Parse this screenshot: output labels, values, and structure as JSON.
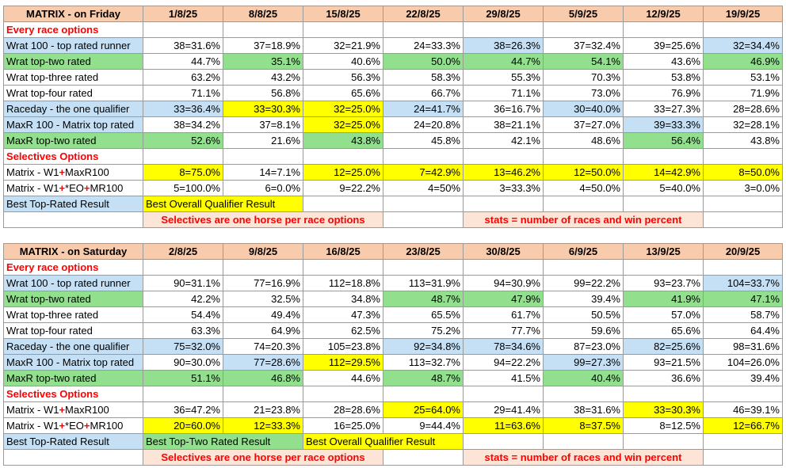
{
  "colors": {
    "blue": "#c5e0f4",
    "green": "#92e08e",
    "yellow": "#ffff00",
    "header": "#f8cbad",
    "note_bg": "#fce4d6",
    "red_text": "#ff0000"
  },
  "friday": {
    "title": "MATRIX - on Friday",
    "dates": [
      "1/8/25",
      "8/8/25",
      "15/8/25",
      "22/8/25",
      "29/8/25",
      "5/9/25",
      "12/9/25",
      "19/9/25"
    ],
    "section1": "Every race options",
    "section2": "Selectives Options",
    "rows": [
      {
        "label": "Wrat 100 - top rated runner",
        "label_bg": "blue",
        "cells": [
          {
            "v": "38=31.6%"
          },
          {
            "v": "37=18.9%"
          },
          {
            "v": "32=21.9%"
          },
          {
            "v": "24=33.3%"
          },
          {
            "v": "38=26.3%",
            "bg": "blue"
          },
          {
            "v": "37=32.4%"
          },
          {
            "v": "39=25.6%"
          },
          {
            "v": "32=34.4%",
            "bg": "blue"
          }
        ]
      },
      {
        "label": "Wrat top-two rated",
        "label_bg": "green",
        "cells": [
          {
            "v": "44.7%"
          },
          {
            "v": "35.1%",
            "bg": "green"
          },
          {
            "v": "40.6%"
          },
          {
            "v": "50.0%",
            "bg": "green"
          },
          {
            "v": "44.7%",
            "bg": "green"
          },
          {
            "v": "54.1%",
            "bg": "green"
          },
          {
            "v": "43.6%"
          },
          {
            "v": "46.9%",
            "bg": "green"
          }
        ]
      },
      {
        "label": "Wrat top-three rated",
        "cells": [
          {
            "v": "63.2%"
          },
          {
            "v": "43.2%"
          },
          {
            "v": "56.3%"
          },
          {
            "v": "58.3%"
          },
          {
            "v": "55.3%"
          },
          {
            "v": "70.3%"
          },
          {
            "v": "53.8%"
          },
          {
            "v": "53.1%"
          }
        ]
      },
      {
        "label": "Wrat top-four rated",
        "cells": [
          {
            "v": "71.1%"
          },
          {
            "v": "56.8%"
          },
          {
            "v": "65.6%"
          },
          {
            "v": "66.7%"
          },
          {
            "v": "71.1%"
          },
          {
            "v": "73.0%"
          },
          {
            "v": "76.9%"
          },
          {
            "v": "71.9%"
          }
        ]
      },
      {
        "label": "Raceday - the one qualifier",
        "label_bg": "blue",
        "cells": [
          {
            "v": "33=36.4%",
            "bg": "blue"
          },
          {
            "v": "33=30.3%",
            "bg": "yellow"
          },
          {
            "v": "32=25.0%",
            "bg": "yellow"
          },
          {
            "v": "24=41.7%",
            "bg": "blue"
          },
          {
            "v": "36=16.7%"
          },
          {
            "v": "30=40.0%",
            "bg": "blue"
          },
          {
            "v": "33=27.3%"
          },
          {
            "v": "28=28.6%"
          }
        ]
      },
      {
        "label": "MaxR 100 - Matrix top rated",
        "label_bg": "blue",
        "cells": [
          {
            "v": "38=34.2%"
          },
          {
            "v": "37=8.1%"
          },
          {
            "v": "32=25.0%",
            "bg": "yellow"
          },
          {
            "v": "24=20.8%"
          },
          {
            "v": "38=21.1%"
          },
          {
            "v": "37=27.0%"
          },
          {
            "v": "39=33.3%",
            "bg": "blue"
          },
          {
            "v": "32=28.1%"
          }
        ]
      },
      {
        "label": "MaxR top-two rated",
        "label_bg": "green",
        "cells": [
          {
            "v": "52.6%",
            "bg": "green"
          },
          {
            "v": "21.6%"
          },
          {
            "v": "43.8%",
            "bg": "green"
          },
          {
            "v": "45.8%"
          },
          {
            "v": "42.1%"
          },
          {
            "v": "48.6%"
          },
          {
            "v": "56.4%",
            "bg": "green"
          },
          {
            "v": "43.8%"
          }
        ]
      }
    ],
    "sel_rows": [
      {
        "label_a": "Matrix - W1",
        "label_b": "+",
        "label_c": "MaxR100",
        "cells": [
          {
            "v": "8=75.0%",
            "bg": "yellow"
          },
          {
            "v": "14=7.1%"
          },
          {
            "v": "12=25.0%",
            "bg": "yellow"
          },
          {
            "v": "7=42.9%",
            "bg": "yellow"
          },
          {
            "v": "13=46.2%",
            "bg": "yellow"
          },
          {
            "v": "12=50.0%",
            "bg": "yellow"
          },
          {
            "v": "14=42.9%",
            "bg": "yellow"
          },
          {
            "v": "8=50.0%",
            "bg": "yellow"
          }
        ]
      },
      {
        "label_a": "Matrix - W1",
        "label_b": "+",
        "label_c": "*EO",
        "label_d": "+",
        "label_e": "MR100",
        "cells": [
          {
            "v": "5=100.0%"
          },
          {
            "v": "6=0.0%"
          },
          {
            "v": "9=22.2%"
          },
          {
            "v": "4=50%"
          },
          {
            "v": "3=33.3%"
          },
          {
            "v": "4=50.0%"
          },
          {
            "v": "5=40.0%"
          },
          {
            "v": "3=0.0%"
          }
        ]
      }
    ],
    "legend_top_rated": "Best Top-Rated Result",
    "legend_overall": "Best Overall Qualifier Result",
    "note_left": "Selectives are one horse per race options",
    "note_right": "stats = number of races and win percent"
  },
  "saturday": {
    "title": "MATRIX - on Saturday",
    "dates": [
      "2/8/25",
      "9/8/25",
      "16/8/25",
      "23/8/25",
      "30/8/25",
      "6/9/25",
      "13/9/25",
      "20/9/25"
    ],
    "section1": "Every race options",
    "section2": "Selectives Options",
    "rows": [
      {
        "label": "Wrat 100 - top rated runner",
        "label_bg": "blue",
        "cells": [
          {
            "v": "90=31.1%"
          },
          {
            "v": "77=16.9%"
          },
          {
            "v": "112=18.8%"
          },
          {
            "v": "113=31.9%"
          },
          {
            "v": "94=30.9%"
          },
          {
            "v": "99=22.2%"
          },
          {
            "v": "93=23.7%"
          },
          {
            "v": "104=33.7%",
            "bg": "blue"
          }
        ]
      },
      {
        "label": "Wrat top-two rated",
        "label_bg": "green",
        "cells": [
          {
            "v": "42.2%"
          },
          {
            "v": "32.5%"
          },
          {
            "v": "34.8%"
          },
          {
            "v": "48.7%",
            "bg": "green"
          },
          {
            "v": "47.9%",
            "bg": "green"
          },
          {
            "v": "39.4%"
          },
          {
            "v": "41.9%",
            "bg": "green"
          },
          {
            "v": "47.1%",
            "bg": "green"
          }
        ]
      },
      {
        "label": "Wrat top-three rated",
        "cells": [
          {
            "v": "54.4%"
          },
          {
            "v": "49.4%"
          },
          {
            "v": "47.3%"
          },
          {
            "v": "65.5%"
          },
          {
            "v": "61.7%"
          },
          {
            "v": "50.5%"
          },
          {
            "v": "57.0%"
          },
          {
            "v": "58.7%"
          }
        ]
      },
      {
        "label": "Wrat top-four rated",
        "cells": [
          {
            "v": "63.3%"
          },
          {
            "v": "64.9%"
          },
          {
            "v": "62.5%"
          },
          {
            "v": "75.2%"
          },
          {
            "v": "77.7%"
          },
          {
            "v": "59.6%"
          },
          {
            "v": "65.6%"
          },
          {
            "v": "64.4%"
          }
        ]
      },
      {
        "label": "Raceday - the one qualifier",
        "label_bg": "blue",
        "cells": [
          {
            "v": "75=32.0%",
            "bg": "blue"
          },
          {
            "v": "74=20.3%"
          },
          {
            "v": "105=23.8%"
          },
          {
            "v": "92=34.8%",
            "bg": "blue"
          },
          {
            "v": "78=34.6%",
            "bg": "blue"
          },
          {
            "v": "87=23.0%"
          },
          {
            "v": "82=25.6%",
            "bg": "blue"
          },
          {
            "v": "98=31.6%"
          }
        ]
      },
      {
        "label": "MaxR 100 - Matrix top rated",
        "label_bg": "blue",
        "cells": [
          {
            "v": "90=30.0%"
          },
          {
            "v": "77=28.6%",
            "bg": "blue"
          },
          {
            "v": "112=29.5%",
            "bg": "yellow"
          },
          {
            "v": "113=32.7%"
          },
          {
            "v": "94=22.2%"
          },
          {
            "v": "99=27.3%",
            "bg": "blue"
          },
          {
            "v": "93=21.5%"
          },
          {
            "v": "104=26.0%"
          }
        ]
      },
      {
        "label": "MaxR top-two rated",
        "label_bg": "green",
        "cells": [
          {
            "v": "51.1%",
            "bg": "green"
          },
          {
            "v": "46.8%",
            "bg": "green"
          },
          {
            "v": "44.6%"
          },
          {
            "v": "48.7%",
            "bg": "green"
          },
          {
            "v": "41.5%"
          },
          {
            "v": "40.4%",
            "bg": "green"
          },
          {
            "v": "36.6%"
          },
          {
            "v": "39.4%"
          }
        ]
      }
    ],
    "sel_rows": [
      {
        "label_a": "Matrix - W1",
        "label_b": "+",
        "label_c": "MaxR100",
        "cells": [
          {
            "v": "36=47.2%"
          },
          {
            "v": "21=23.8%"
          },
          {
            "v": "28=28.6%"
          },
          {
            "v": "25=64.0%",
            "bg": "yellow"
          },
          {
            "v": "29=41.4%"
          },
          {
            "v": "38=31.6%"
          },
          {
            "v": "33=30.3%",
            "bg": "yellow"
          },
          {
            "v": "46=39.1%"
          }
        ]
      },
      {
        "label_a": "Matrix - W1",
        "label_b": "+",
        "label_c": "*EO",
        "label_d": "+",
        "label_e": "MR100",
        "cells": [
          {
            "v": "20=60.0%",
            "bg": "yellow"
          },
          {
            "v": "12=33.3%",
            "bg": "yellow"
          },
          {
            "v": "16=25.0%"
          },
          {
            "v": "9=44.4%"
          },
          {
            "v": "11=63.6%",
            "bg": "yellow"
          },
          {
            "v": "8=37.5%",
            "bg": "yellow"
          },
          {
            "v": "8=12.5%"
          },
          {
            "v": "12=66.7%",
            "bg": "yellow"
          }
        ]
      }
    ],
    "legend_top_rated": "Best Top-Rated Result",
    "legend_top_two": "Best Top-Two Rated Result",
    "legend_overall": "Best Overall Qualifier Result",
    "note_left": "Selectives are one horse per race options",
    "note_right": "stats = number of races and win percent"
  }
}
